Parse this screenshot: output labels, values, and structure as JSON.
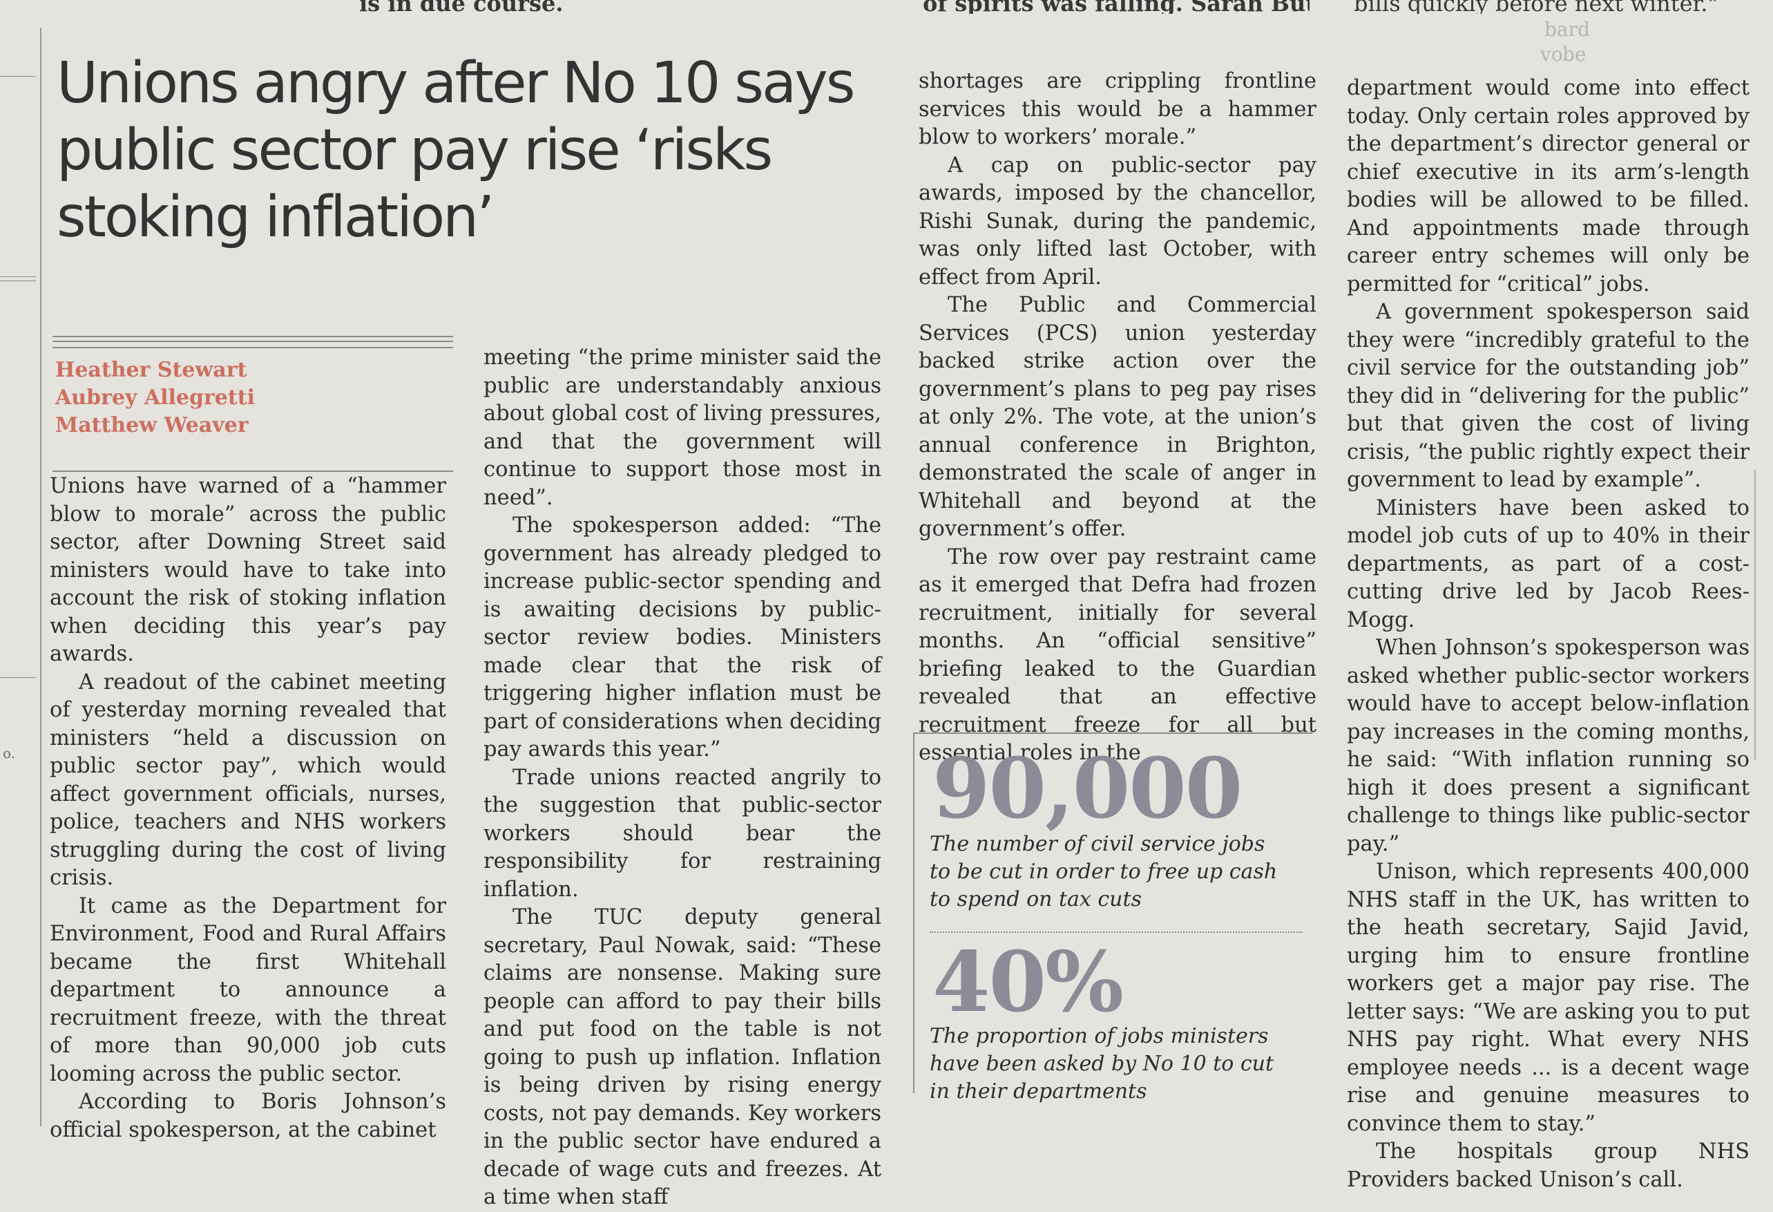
{
  "top_strip": {
    "left_fragment": "is in due course.",
    "middle_fragment": "of spirits was falling. Sarah Butler",
    "right_fragment": "bills quickly before next winter.\""
  },
  "ghost_text": [
    "bard",
    "vo",
    "be"
  ],
  "headline": "Unions angry after No 10 says public sector pay rise ‘risks stoking inflation’",
  "bylines": [
    "Heather Stewart",
    "Aubrey Allegretti",
    "Matthew Weaver"
  ],
  "columns": [
    [
      "Unions have warned of a “hammer blow to morale” across the public sector, after Downing Street said ministers would have to take into account the risk of stoking inflation when deciding this year’s pay awards.",
      "A readout of the cabinet meeting of yesterday morning revealed that ministers “held a discussion on public sector pay”, which would affect government officials, nurses, police, teachers and NHS workers struggling during the cost of living crisis.",
      "It came as the Department for Environment, Food and Rural Affairs became the first Whitehall department to announce a recruitment freeze, with the threat of more than 90,000 job cuts looming across the public sector.",
      "According to Boris Johnson’s official spokesperson, at the cabinet"
    ],
    [
      "meeting “the prime minister said the public are understandably anxious about global cost of living pressures, and that the government will continue to support those most in need”.",
      "The spokesperson added: “The government has already pledged to increase public-sector spending and is awaiting decisions by public-sector review bodies. Ministers made clear that the risk of triggering higher inflation must be part of considerations when deciding pay awards this year.”",
      "Trade unions reacted angrily to the suggestion that public-sector workers should bear the responsibility for restraining inflation.",
      "The TUC deputy general secretary, Paul Nowak, said: “These claims are nonsense. Making sure people can afford to pay their bills and put food on the table is not going to push up inflation. Inflation is being driven by rising energy costs, not pay demands. Key workers in the public sector have endured a decade of wage cuts and freezes. At a time when staff"
    ],
    [
      "shortages are crippling frontline services this would be a hammer blow to workers’ morale.”",
      "A cap on public-sector pay awards, imposed by the chancellor, Rishi Sunak, during the pandemic, was only lifted last October, with effect from April.",
      "The Public and Commercial Services (PCS) union yesterday backed strike action over the government’s plans to peg pay rises at only 2%. The vote, at the union’s annual conference in Brighton, demonstrated the scale of anger in Whitehall and beyond at the government’s offer.",
      "The row over pay restraint came as it emerged that Defra had frozen recruitment, initially for several months. An “official sensitive” briefing leaked to the Guardian revealed that an effective recruitment freeze for all but essential roles in the"
    ],
    [
      "department would come into effect today. Only certain roles approved by the department’s director general or chief executive in its arm’s-length bodies will be allowed to be filled. And appointments made through career entry schemes will only be permitted for “critical” jobs.",
      "A government spokesperson said they were “incredibly grateful to the civil service for the outstanding job” they did in “delivering for the public” but that given the cost of living crisis, “the public rightly expect their government to lead by example”.",
      "Ministers have been asked to model job cuts of up to 40% in their departments, as part of a cost-cutting drive led by Jacob Rees-Mogg.",
      "When Johnson’s spokesperson was asked whether public-sector workers would have to accept below-inflation pay increases in the coming months, he said: “With inflation running so high it does present a significant challenge to things like public-sector pay.”",
      "Unison, which represents 400,000 NHS staff in the UK, has written to the heath secretary, Sajid Javid, urging him to ensure frontline workers get a major pay rise. The letter says: “We are asking you to put NHS pay right. What every NHS employee needs ... is a decent wage rise and genuine measures to convince them to stay.”",
      "The hospitals group NHS Providers backed Unison’s call."
    ]
  ],
  "stats": [
    {
      "number": "90,000",
      "caption": "The number of civil service jobs to be cut in order to free up cash to spend on tax cuts"
    },
    {
      "number": "40%",
      "caption": "The proportion of jobs ministers have been asked by No 10 to cut in their departments"
    }
  ],
  "margin_mark": "o.",
  "colors": {
    "background": "#e6e3df",
    "text": "#2f2c2b",
    "byline": "#cc6f5e",
    "stat_number": "#8e8a98"
  }
}
